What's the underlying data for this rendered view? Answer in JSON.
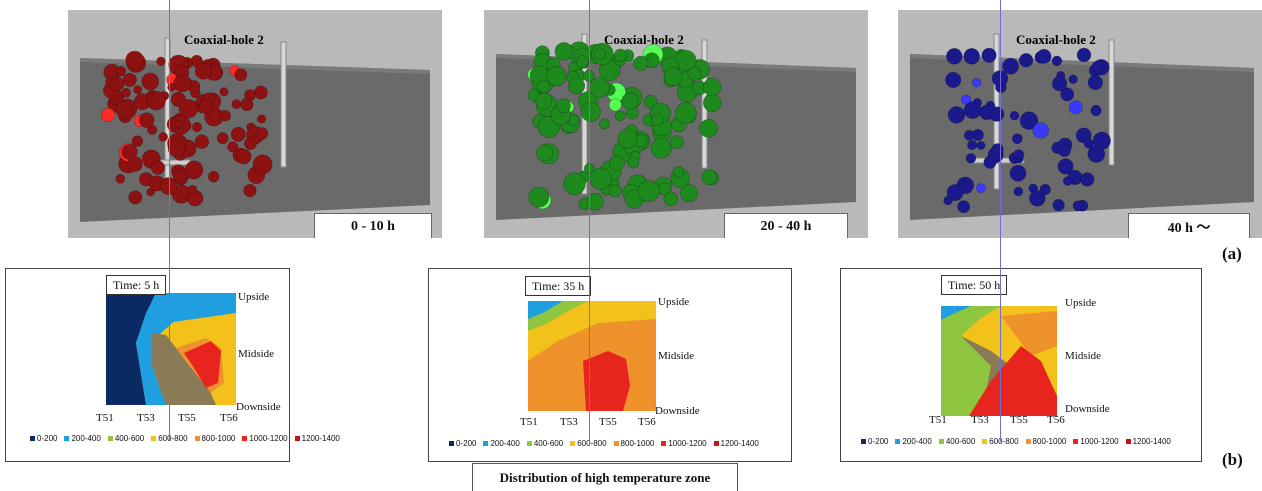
{
  "scenes": [
    {
      "title": "Coaxial-hole 2",
      "time": "0 - 10 h",
      "color": "#8e1212",
      "highlight": "#ff2a2a"
    },
    {
      "title": "Coaxial-hole 2",
      "time": "20 - 40 h",
      "color": "#1e8a1e",
      "highlight": "#55ff55"
    },
    {
      "title": "Coaxial-hole 2",
      "time": "40 h ～",
      "color": "#1a1a8c",
      "highlight": "#3a3aff"
    }
  ],
  "panels": [
    {
      "time": "Time:  5 h"
    },
    {
      "time": "Time:  35 h"
    },
    {
      "time": "Time:  50 h"
    }
  ],
  "side_labels": {
    "up": "Upside",
    "mid": "Midside",
    "down": "Downside"
  },
  "ticks": [
    "T51",
    "T53",
    "T55",
    "T56"
  ],
  "legend": [
    {
      "label": "0-200",
      "color": "#0b2a63"
    },
    {
      "label": "200-400",
      "color": "#1f9fe0"
    },
    {
      "label": "400-600",
      "color": "#8ec63f"
    },
    {
      "label": "600-800",
      "color": "#f3c21a"
    },
    {
      "label": "800-1000",
      "color": "#f0922b"
    },
    {
      "label": "1000-1200",
      "color": "#e8241e"
    },
    {
      "label": "1200-1400",
      "color": "#c8101a"
    }
  ],
  "tags": {
    "a": "(a)",
    "b": "(b)"
  },
  "caption": "Distribution of high temperature zone"
}
